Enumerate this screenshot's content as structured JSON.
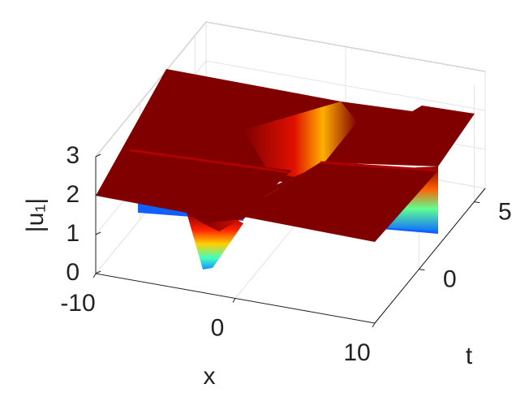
{
  "chart_data": {
    "type": "surface",
    "xlabel": "x",
    "ylabel": "t",
    "zlabel": "|u₁|",
    "xlim": [
      -10,
      10
    ],
    "xticks": [
      -10,
      0,
      10
    ],
    "ylim": [
      -4,
      6
    ],
    "yticks": [
      0,
      5
    ],
    "zlim": [
      0,
      3
    ],
    "zticks": [
      0,
      1,
      2,
      3
    ],
    "grid": true,
    "colormap": "jet"
  }
}
